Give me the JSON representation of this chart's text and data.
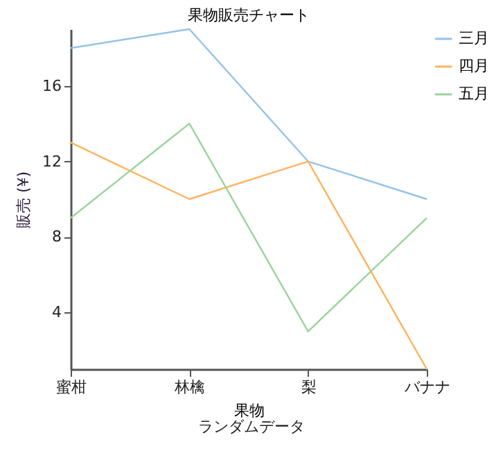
{
  "chart_data": {
    "type": "line",
    "title": "果物販売チャート",
    "xlabel": "果物",
    "ylabel": "販売 (¥)",
    "annotations": [
      "ランダムデータ"
    ],
    "categories": [
      "蜜柑",
      "林檎",
      "梨",
      "バナナ"
    ],
    "series": [
      {
        "name": "三月",
        "color": "#92c3e8",
        "values": [
          18,
          19,
          12,
          10
        ]
      },
      {
        "name": "四月",
        "color": "#ffb35f",
        "values": [
          13,
          10,
          12,
          1
        ]
      },
      {
        "name": "五月",
        "color": "#9ad49a",
        "values": [
          9,
          14,
          3,
          9
        ]
      }
    ],
    "ylim": [
      1,
      19
    ],
    "yticks": [
      4,
      8,
      12,
      16
    ],
    "grid": false,
    "legend": "right",
    "marker": "none",
    "line_style": "solid"
  }
}
